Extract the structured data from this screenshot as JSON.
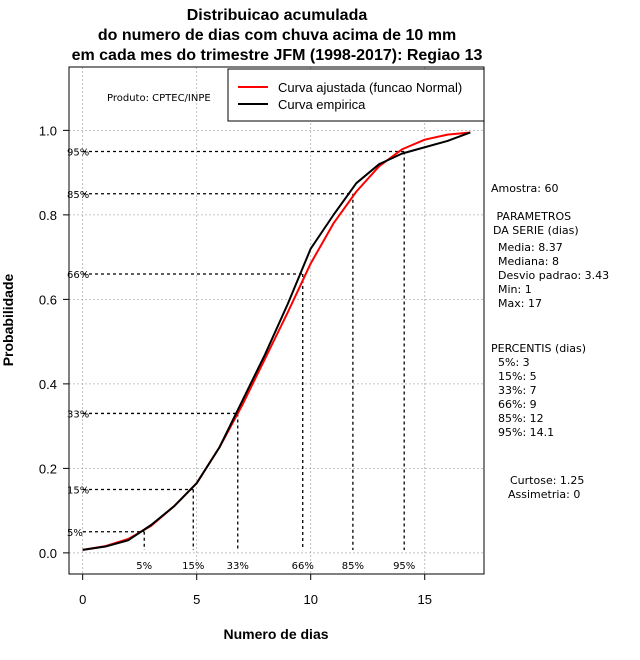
{
  "chart_data": {
    "type": "line",
    "title_lines": [
      "Distribuicao acumulada",
      "do numero de dias com chuva acima de 10 mm",
      "em cada mes do trimestre JFM (1998-2017): Regiao 13"
    ],
    "xlabel": "Numero de dias",
    "ylabel": "Probabilidade",
    "xlim": [
      -0.6,
      17.6
    ],
    "ylim": [
      -0.05,
      1.15
    ],
    "x_ticks": [
      "0",
      "5",
      "10",
      "15"
    ],
    "x_tick_values": [
      0,
      5,
      10,
      15
    ],
    "y_ticks": [
      "0.0",
      "0.2",
      "0.4",
      "0.6",
      "0.8",
      "1.0"
    ],
    "y_tick_values": [
      0,
      0.2,
      0.4,
      0.6,
      0.8,
      1.0
    ],
    "grid": true,
    "legend_position": "top-right",
    "product_label": "Produto: CPTEC/INPE",
    "series": [
      {
        "name": "Curva ajustada (funcao Normal)",
        "color": "#ff0000",
        "x": [
          0,
          1,
          2,
          3,
          4,
          5,
          6,
          7,
          8,
          9,
          10,
          11,
          12,
          13,
          14,
          15,
          16,
          17
        ],
        "y": [
          0.007,
          0.016,
          0.033,
          0.064,
          0.11,
          0.165,
          0.25,
          0.35,
          0.46,
          0.57,
          0.685,
          0.78,
          0.855,
          0.915,
          0.955,
          0.978,
          0.99,
          0.995
        ]
      },
      {
        "name": "Curva empirica",
        "color": "#000000",
        "x": [
          0,
          1,
          2,
          3,
          4,
          5,
          6,
          7,
          8,
          9,
          10,
          11,
          12,
          13,
          14,
          15,
          16,
          17
        ],
        "y": [
          0.007,
          0.015,
          0.03,
          0.066,
          0.11,
          0.165,
          0.25,
          0.36,
          0.47,
          0.59,
          0.72,
          0.8,
          0.875,
          0.92,
          0.945,
          0.96,
          0.975,
          0.995
        ]
      }
    ],
    "percentile_markers": [
      {
        "label": "5%",
        "x": 2.7,
        "y": 0.05
      },
      {
        "label": "15%",
        "x": 4.85,
        "y": 0.15
      },
      {
        "label": "33%",
        "x": 6.8,
        "y": 0.33
      },
      {
        "label": "66%",
        "x": 9.65,
        "y": 0.66
      },
      {
        "label": "85%",
        "x": 11.85,
        "y": 0.85
      },
      {
        "label": "95%",
        "x": 14.1,
        "y": 0.95
      }
    ],
    "side_panel": {
      "amostra": "Amostra: 60",
      "parametros_title": " PARAMETROS\nDA SERIE (dias)",
      "parametros": [
        "Media: 8.37",
        "Mediana: 8",
        "Desvio padrao: 3.43",
        "Min: 1",
        "Max: 17"
      ],
      "percentis_title": "PERCENTIS (dias)",
      "percentis": [
        "5%: 3",
        "15%: 5",
        "33%: 7",
        "66%: 9",
        "85%: 12",
        "95%: 14.1"
      ],
      "curtose": "Curtose: 1.25",
      "assimetria": "Assimetria: 0"
    }
  }
}
